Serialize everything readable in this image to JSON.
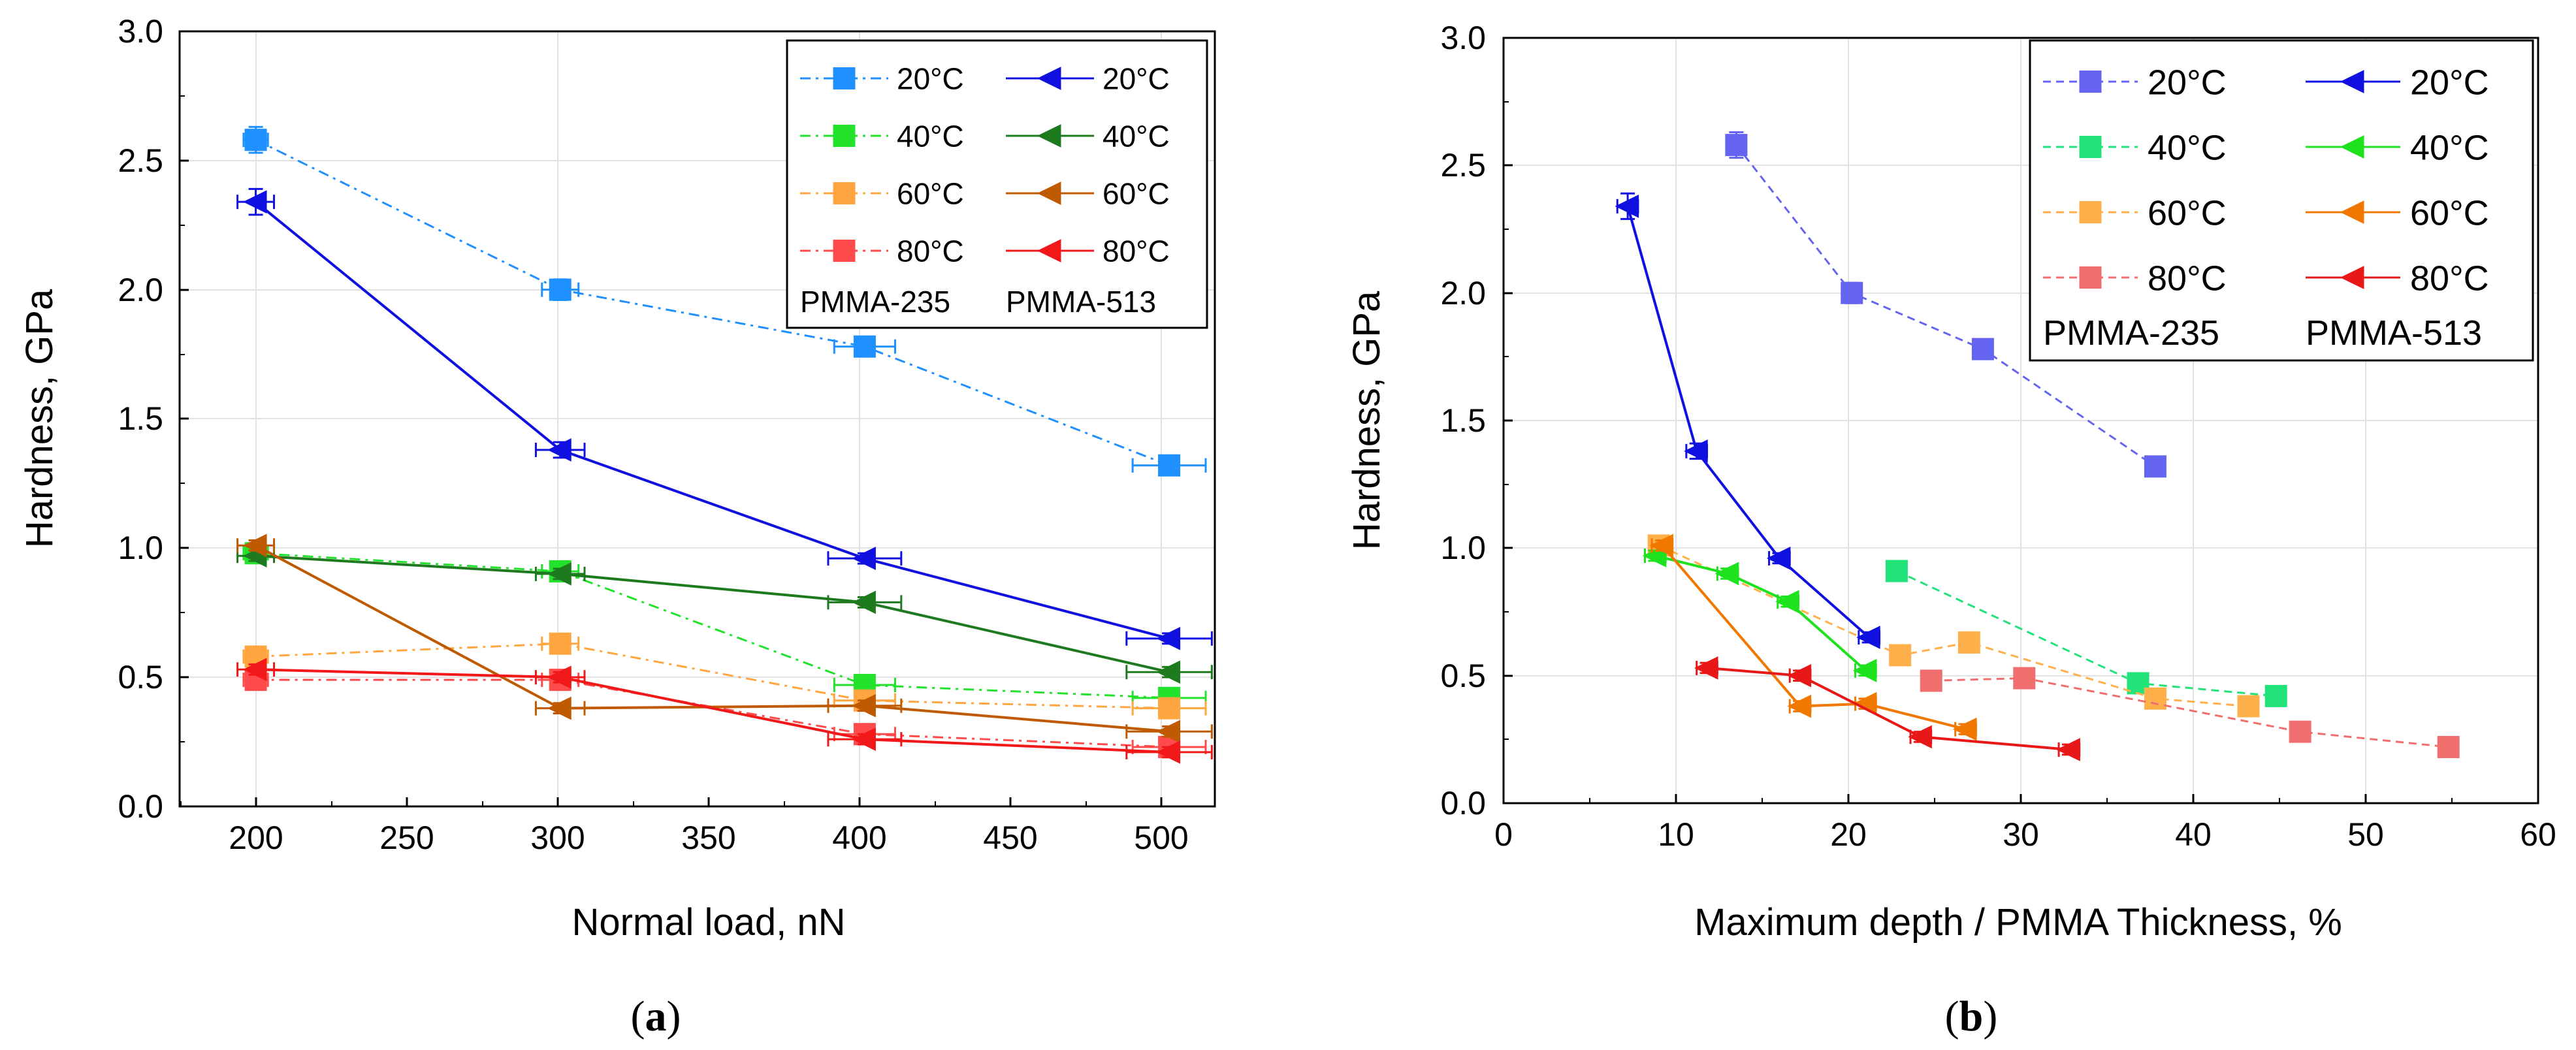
{
  "chart_data": [
    {
      "panel_label": "a",
      "type": "line",
      "xlabel": "Normal load, nN",
      "ylabel": "Hardness, GPa",
      "xlim": [
        175,
        515
      ],
      "ylim": [
        0,
        3.0
      ],
      "xticks": [
        200,
        250,
        300,
        350,
        400,
        450,
        500
      ],
      "yticks": [
        0.0,
        0.5,
        1.0,
        1.5,
        2.0,
        2.5,
        3.0
      ],
      "legend_position": "top-right",
      "legend_group_labels": [
        "PMMA-235",
        "PMMA-513"
      ],
      "series": [
        {
          "name": "20°C",
          "group": "PMMA-235",
          "marker": "square",
          "dash": "dashdot",
          "color": "#1E90FF",
          "x": [
            200,
            300,
            400,
            500
          ],
          "y": [
            2.58,
            2.0,
            1.78,
            1.32
          ],
          "xerr": [
            4,
            6,
            10,
            12
          ],
          "yerr": [
            0.05,
            0.04,
            0.03,
            0.02
          ]
        },
        {
          "name": "40°C",
          "group": "PMMA-235",
          "marker": "square",
          "dash": "dashdot",
          "color": "#22E22B",
          "x": [
            200,
            300,
            400,
            500
          ],
          "y": [
            0.98,
            0.91,
            0.47,
            0.42
          ],
          "xerr": [
            4,
            6,
            10,
            12
          ],
          "yerr": [
            0.03,
            0.03,
            0.02,
            0.02
          ]
        },
        {
          "name": "60°C",
          "group": "PMMA-235",
          "marker": "square",
          "dash": "dashdot",
          "color": "#FFA640",
          "x": [
            200,
            300,
            400,
            500
          ],
          "y": [
            0.58,
            0.63,
            0.41,
            0.38
          ],
          "xerr": [
            4,
            6,
            10,
            12
          ],
          "yerr": [
            0.02,
            0.02,
            0.02,
            0.02
          ]
        },
        {
          "name": "80°C",
          "group": "PMMA-235",
          "marker": "square",
          "dash": "dashdot",
          "color": "#FF4B4B",
          "x": [
            200,
            300,
            400,
            500
          ],
          "y": [
            0.49,
            0.49,
            0.28,
            0.23
          ],
          "xerr": [
            4,
            6,
            10,
            12
          ],
          "yerr": [
            0.02,
            0.02,
            0.02,
            0.02
          ]
        },
        {
          "name": "20°C",
          "group": "PMMA-513",
          "marker": "triangle-left",
          "dash": "solid",
          "color": "#1010E0",
          "x": [
            200,
            300,
            400,
            500
          ],
          "y": [
            2.34,
            1.38,
            0.96,
            0.65
          ],
          "xerr": [
            6,
            8,
            12,
            14
          ],
          "yerr": [
            0.05,
            0.03,
            0.02,
            0.02
          ]
        },
        {
          "name": "40°C",
          "group": "PMMA-513",
          "marker": "triangle-left",
          "dash": "solid",
          "color": "#1E7A1E",
          "x": [
            200,
            300,
            400,
            500
          ],
          "y": [
            0.97,
            0.9,
            0.79,
            0.52
          ],
          "xerr": [
            6,
            8,
            12,
            14
          ],
          "yerr": [
            0.02,
            0.02,
            0.02,
            0.02
          ]
        },
        {
          "name": "60°C",
          "group": "PMMA-513",
          "marker": "triangle-left",
          "dash": "solid",
          "color": "#C05A00",
          "x": [
            200,
            300,
            400,
            500
          ],
          "y": [
            1.01,
            0.38,
            0.39,
            0.29
          ],
          "xerr": [
            6,
            8,
            12,
            14
          ],
          "yerr": [
            0.02,
            0.02,
            0.02,
            0.02
          ]
        },
        {
          "name": "80°C",
          "group": "PMMA-513",
          "marker": "triangle-left",
          "dash": "solid",
          "color": "#F01818",
          "x": [
            200,
            300,
            400,
            500
          ],
          "y": [
            0.53,
            0.5,
            0.26,
            0.21
          ],
          "xerr": [
            6,
            8,
            12,
            14
          ],
          "yerr": [
            0.02,
            0.02,
            0.02,
            0.02
          ]
        }
      ]
    },
    {
      "panel_label": "b",
      "type": "line",
      "xlabel": "Maximum depth / PMMA Thickness, %",
      "ylabel": "Hardness, GPa",
      "xlim": [
        0,
        60
      ],
      "ylim": [
        0,
        3.0
      ],
      "xticks": [
        0,
        10,
        20,
        30,
        40,
        50,
        60
      ],
      "yticks": [
        0.0,
        0.5,
        1.0,
        1.5,
        2.0,
        2.5,
        3.0
      ],
      "legend_position": "top-right",
      "legend_group_labels": [
        "PMMA-235",
        "PMMA-513"
      ],
      "series": [
        {
          "name": "20°C",
          "group": "PMMA-235",
          "marker": "square",
          "dash": "dash",
          "color": "#6464F0",
          "x": [
            13.5,
            20.2,
            27.8,
            37.8
          ],
          "y": [
            2.58,
            2.0,
            1.78,
            1.32
          ],
          "xerr": [
            0,
            0,
            0,
            0
          ],
          "yerr": [
            0.05,
            0.04,
            0.03,
            0.02
          ]
        },
        {
          "name": "40°C",
          "group": "PMMA-235",
          "marker": "square",
          "dash": "dash",
          "color": "#22E27A",
          "x": [
            22.8,
            36.8,
            44.8
          ],
          "y": [
            0.91,
            0.47,
            0.42
          ],
          "xerr": [
            0,
            0,
            0
          ],
          "yerr": [
            0.02,
            0.02,
            0.02
          ]
        },
        {
          "name": "60°C",
          "group": "PMMA-235",
          "marker": "square",
          "dash": "dash",
          "color": "#FFB04A",
          "x": [
            9.0,
            23.0,
            27.0,
            37.8,
            43.2
          ],
          "y": [
            1.01,
            0.58,
            0.63,
            0.41,
            0.38
          ],
          "xerr": [
            0,
            0,
            0,
            0,
            0
          ],
          "yerr": [
            0.02,
            0.02,
            0.02,
            0.02,
            0.02
          ]
        },
        {
          "name": "80°C",
          "group": "PMMA-235",
          "marker": "square",
          "dash": "dash",
          "color": "#F06E6E",
          "x": [
            24.8,
            30.2,
            46.2,
            54.8
          ],
          "y": [
            0.48,
            0.49,
            0.28,
            0.22
          ],
          "xerr": [
            0,
            0,
            0,
            0
          ],
          "yerr": [
            0.02,
            0.02,
            0.02,
            0.02
          ]
        },
        {
          "name": "20°C",
          "group": "PMMA-513",
          "marker": "triangle-left",
          "dash": "solid",
          "color": "#1010E0",
          "x": [
            7.2,
            11.2,
            16.0,
            21.2
          ],
          "y": [
            2.34,
            1.38,
            0.96,
            0.65
          ],
          "xerr": [
            0.6,
            0.6,
            0.6,
            0.6
          ],
          "yerr": [
            0.05,
            0.03,
            0.02,
            0.02
          ]
        },
        {
          "name": "40°C",
          "group": "PMMA-513",
          "marker": "triangle-left",
          "dash": "solid",
          "color": "#1EE21E",
          "x": [
            8.8,
            13.0,
            16.5,
            21.0
          ],
          "y": [
            0.97,
            0.9,
            0.79,
            0.52
          ],
          "xerr": [
            0.6,
            0.6,
            0.6,
            0.6
          ],
          "yerr": [
            0.02,
            0.02,
            0.02,
            0.02
          ]
        },
        {
          "name": "60°C",
          "group": "PMMA-513",
          "marker": "triangle-left",
          "dash": "solid",
          "color": "#F07800",
          "x": [
            9.2,
            17.2,
            21.0,
            26.8
          ],
          "y": [
            1.01,
            0.38,
            0.39,
            0.29
          ],
          "xerr": [
            0.6,
            0.6,
            0.6,
            0.6
          ],
          "yerr": [
            0.02,
            0.02,
            0.02,
            0.02
          ]
        },
        {
          "name": "80°C",
          "group": "PMMA-513",
          "marker": "triangle-left",
          "dash": "solid",
          "color": "#E81818",
          "x": [
            11.8,
            17.2,
            24.2,
            32.8
          ],
          "y": [
            0.53,
            0.5,
            0.26,
            0.21
          ],
          "xerr": [
            0.6,
            0.6,
            0.6,
            0.6
          ],
          "yerr": [
            0.02,
            0.02,
            0.02,
            0.02
          ]
        }
      ]
    }
  ]
}
